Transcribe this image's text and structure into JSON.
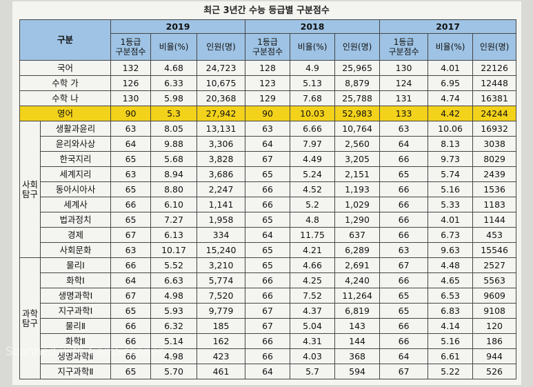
{
  "title": "최근 3년간 수능 등급별 구분점수",
  "header": {
    "corner": "구분",
    "years": [
      "2019",
      "2018",
      "2017"
    ],
    "columns": [
      "1등급\n구분점수",
      "비율(%)",
      "인원(명)"
    ]
  },
  "highlight_color": "#f3d21b",
  "rows": [
    {
      "label": "국어",
      "cells": [
        "132",
        "4.68",
        "24,723",
        "128",
        "4.9",
        "25,965",
        "130",
        "4.01",
        "22126"
      ]
    },
    {
      "label": "수학 가",
      "cells": [
        "126",
        "6.33",
        "10,675",
        "123",
        "5.13",
        "8,879",
        "124",
        "6.95",
        "12448"
      ]
    },
    {
      "label": "수학 나",
      "cells": [
        "130",
        "5.98",
        "20,368",
        "129",
        "7.68",
        "25,788",
        "131",
        "4.74",
        "16381"
      ]
    },
    {
      "label": "영어",
      "highlight": true,
      "cells": [
        "90",
        "5.3",
        "27,942",
        "90",
        "10.03",
        "52,983",
        "133",
        "4.42",
        "24244"
      ]
    }
  ],
  "groups": [
    {
      "label": "사회\n탐구",
      "rows": [
        {
          "label": "생활과윤리",
          "cells": [
            "63",
            "8.05",
            "13,131",
            "63",
            "6.66",
            "10,764",
            "63",
            "10.06",
            "16932"
          ]
        },
        {
          "label": "윤리와사상",
          "cells": [
            "64",
            "9.88",
            "3,306",
            "64",
            "7.97",
            "2,560",
            "64",
            "8.13",
            "3038"
          ]
        },
        {
          "label": "한국지리",
          "cells": [
            "65",
            "5.68",
            "3,828",
            "67",
            "4.49",
            "3,205",
            "66",
            "9.73",
            "8029"
          ]
        },
        {
          "label": "세계지리",
          "cells": [
            "63",
            "8.94",
            "3,686",
            "65",
            "5.24",
            "2,151",
            "65",
            "5.74",
            "2439"
          ]
        },
        {
          "label": "동아시아사",
          "cells": [
            "65",
            "8.80",
            "2,247",
            "66",
            "4.52",
            "1,193",
            "66",
            "5.16",
            "1536"
          ]
        },
        {
          "label": "세계사",
          "cells": [
            "66",
            "6.10",
            "1,141",
            "66",
            "5.2",
            "1,029",
            "66",
            "5.33",
            "1183"
          ]
        },
        {
          "label": "법과정치",
          "cells": [
            "65",
            "7.27",
            "1,958",
            "65",
            "4.8",
            "1,290",
            "66",
            "4.01",
            "1144"
          ]
        },
        {
          "label": "경제",
          "cells": [
            "67",
            "6.13",
            "334",
            "64",
            "11.75",
            "637",
            "66",
            "6.73",
            "453"
          ]
        },
        {
          "label": "사회문화",
          "cells": [
            "63",
            "10.17",
            "15,240",
            "65",
            "4.21",
            "6,289",
            "63",
            "9.63",
            "15546"
          ]
        }
      ]
    },
    {
      "label": "과학\n탐구",
      "rows": [
        {
          "label": "물리Ⅰ",
          "cells": [
            "66",
            "5.52",
            "3,210",
            "65",
            "4.66",
            "2,691",
            "67",
            "4.48",
            "2527"
          ]
        },
        {
          "label": "화학Ⅰ",
          "cells": [
            "64",
            "6.63",
            "5,774",
            "66",
            "4.25",
            "4,240",
            "66",
            "4.65",
            "5563"
          ]
        },
        {
          "label": "생명과학Ⅰ",
          "cells": [
            "67",
            "4.98",
            "7,520",
            "66",
            "7.52",
            "11,264",
            "65",
            "6.53",
            "9609"
          ]
        },
        {
          "label": "지구과학Ⅰ",
          "cells": [
            "65",
            "5.93",
            "9,779",
            "67",
            "4.37",
            "6,819",
            "65",
            "6.83",
            "9108"
          ]
        },
        {
          "label": "물리Ⅱ",
          "cells": [
            "66",
            "6.32",
            "185",
            "67",
            "5.04",
            "143",
            "66",
            "4.14",
            "120"
          ]
        },
        {
          "label": "화학Ⅱ",
          "cells": [
            "66",
            "5.14",
            "162",
            "66",
            "4.31",
            "144",
            "66",
            "5.16",
            "186"
          ]
        },
        {
          "label": "생명과학Ⅱ",
          "cells": [
            "66",
            "4.98",
            "423",
            "66",
            "4.03",
            "368",
            "64",
            "6.61",
            "944"
          ]
        },
        {
          "label": "지구과학Ⅱ",
          "cells": [
            "65",
            "5.70",
            "461",
            "64",
            "5.7",
            "594",
            "67",
            "5.22",
            "526"
          ]
        }
      ]
    }
  ],
  "watermark": "Scanned with CamScanner"
}
